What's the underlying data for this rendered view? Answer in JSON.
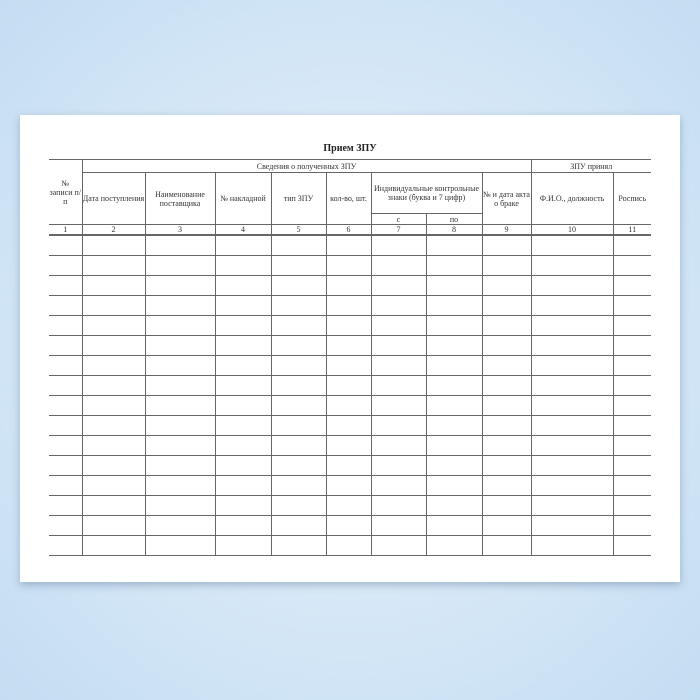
{
  "form": {
    "title": "Прием ЗПУ",
    "group_received": "Сведения о полученных ЗПУ",
    "group_accepted": "ЗПУ принял",
    "columns": [
      "№ записи п/п",
      "Дата поступления",
      "Наименование поставщика",
      "№ накладной",
      "тип ЗПУ",
      "кол-во, шт.",
      "Индивидуальные контрольные знаки (буква и 7 цифр)",
      "№ и дата акта о браке",
      "Ф.И.О., должность",
      "Роспись"
    ],
    "sub_from": "с",
    "sub_to": "по",
    "numbers": [
      "1",
      "2",
      "3",
      "4",
      "5",
      "6",
      "7",
      "8",
      "9",
      "10",
      "11"
    ],
    "empty_rows": 16
  }
}
